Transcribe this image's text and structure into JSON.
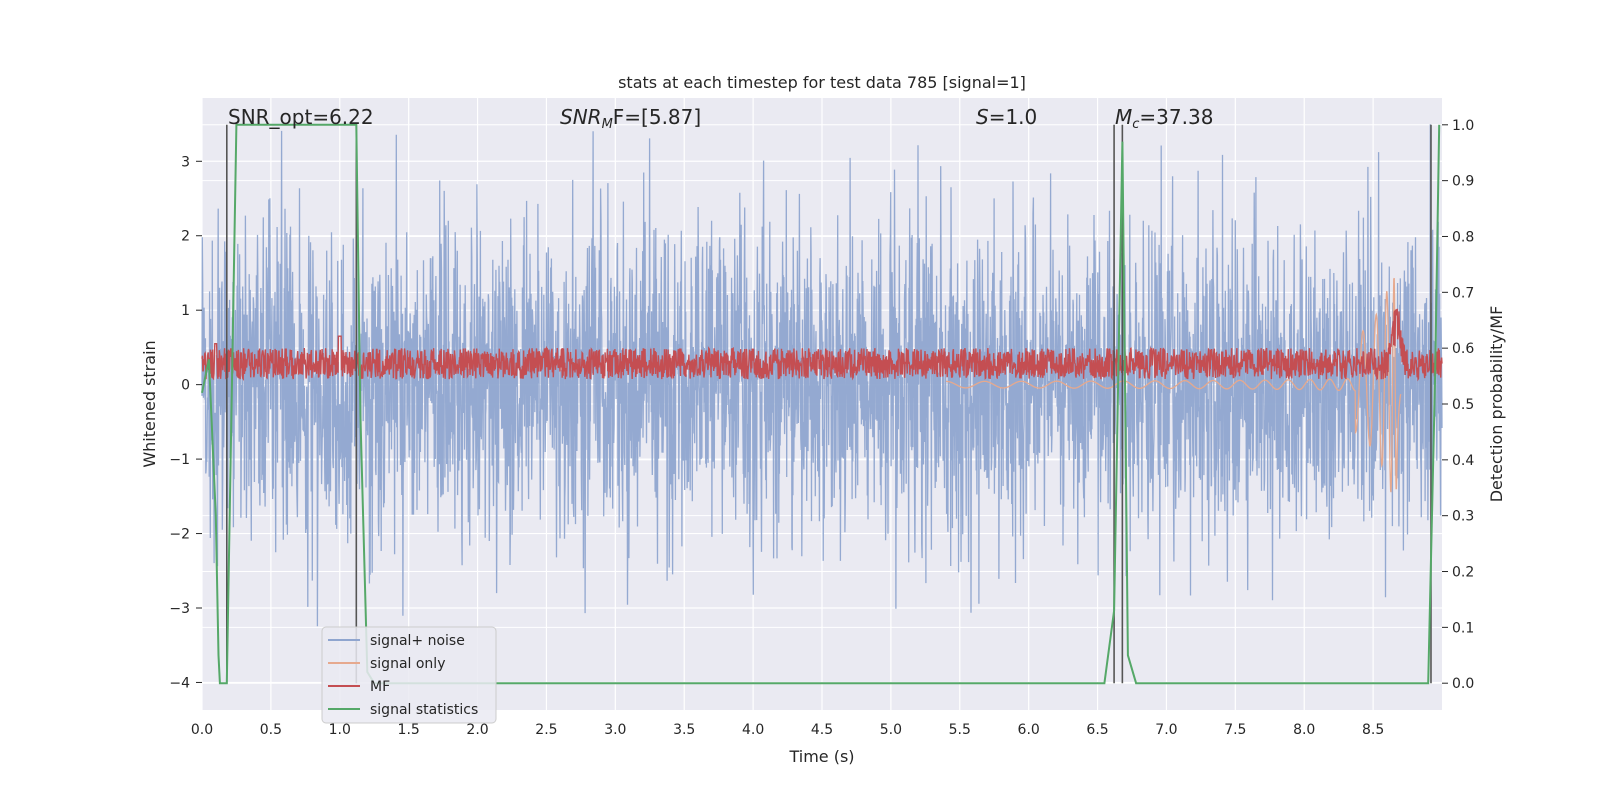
{
  "chart_data": {
    "type": "line",
    "title": "stats at each timestep for test data 785 [signal=1]",
    "xlabel": "Time (s)",
    "ylabel": "Whitened strain",
    "y2label": "Detection probability/MF",
    "xlim": [
      0.0,
      9.0
    ],
    "ylim": [
      -4.37,
      3.85
    ],
    "y2lim": [
      -0.048,
      1.048
    ],
    "grid": true,
    "legend_position": "lower-left",
    "xticks": [
      "0.0",
      "0.5",
      "1.0",
      "1.5",
      "2.0",
      "2.5",
      "3.0",
      "3.5",
      "4.0",
      "4.5",
      "5.0",
      "5.5",
      "6.0",
      "6.5",
      "7.0",
      "7.5",
      "8.0",
      "8.5"
    ],
    "yticks": [
      "3",
      "2",
      "1",
      "0",
      "−1",
      "−2",
      "−3",
      "−4"
    ],
    "y2ticks": [
      "1.0",
      "0.9",
      "0.8",
      "0.7",
      "0.6",
      "0.5",
      "0.4",
      "0.3",
      "0.2",
      "0.1",
      "0.0"
    ],
    "annotations": {
      "snr_opt": "SNR_opt=6.22",
      "snr_mf_sym": "SNR",
      "snr_mf_sub": "M",
      "snr_mf_rest": "F=[5.87]",
      "s_sym": "S",
      "s_rest": "=1.0",
      "mc_sym": "M",
      "mc_sub": "c",
      "mc_rest": "=37.38"
    },
    "legend": [
      "signal+ noise",
      "signal only",
      "MF",
      "signal statistics"
    ],
    "series": [
      {
        "name": "signal+ noise",
        "color": "#8fa5cf",
        "kind": "noise",
        "amplitude_range": [
          -3.3,
          3.5
        ]
      },
      {
        "name": "signal only",
        "color": "#e6a98e",
        "kind": "chirp",
        "merger_time": 8.67,
        "peak_amplitude": 1.45
      },
      {
        "name": "MF",
        "color": "#c44e52",
        "kind": "mf",
        "mean": 0.22,
        "peak_time": 8.67,
        "peak_value": 1.0
      },
      {
        "name": "signal statistics",
        "color": "#55a868",
        "axis": "right",
        "points": [
          [
            0.0,
            0.52
          ],
          [
            0.05,
            0.58
          ],
          [
            0.1,
            0.3
          ],
          [
            0.12,
            0.05
          ],
          [
            0.13,
            0.0
          ],
          [
            0.18,
            0.0
          ],
          [
            0.25,
            1.0
          ],
          [
            1.12,
            1.0
          ],
          [
            1.15,
            0.48
          ],
          [
            1.2,
            0.02
          ],
          [
            1.25,
            0.0
          ],
          [
            6.55,
            0.0
          ],
          [
            6.62,
            0.13
          ],
          [
            6.68,
            0.97
          ],
          [
            6.72,
            0.05
          ],
          [
            6.78,
            0.0
          ],
          [
            8.9,
            0.0
          ],
          [
            8.95,
            0.55
          ],
          [
            8.98,
            1.0
          ]
        ]
      }
    ],
    "vertical_lines": [
      0.18,
      1.12,
      6.62,
      6.68,
      8.92
    ],
    "colors": {
      "plot_bg": "#eaeaf2",
      "grid": "#ffffff",
      "vline": "#555555"
    }
  }
}
